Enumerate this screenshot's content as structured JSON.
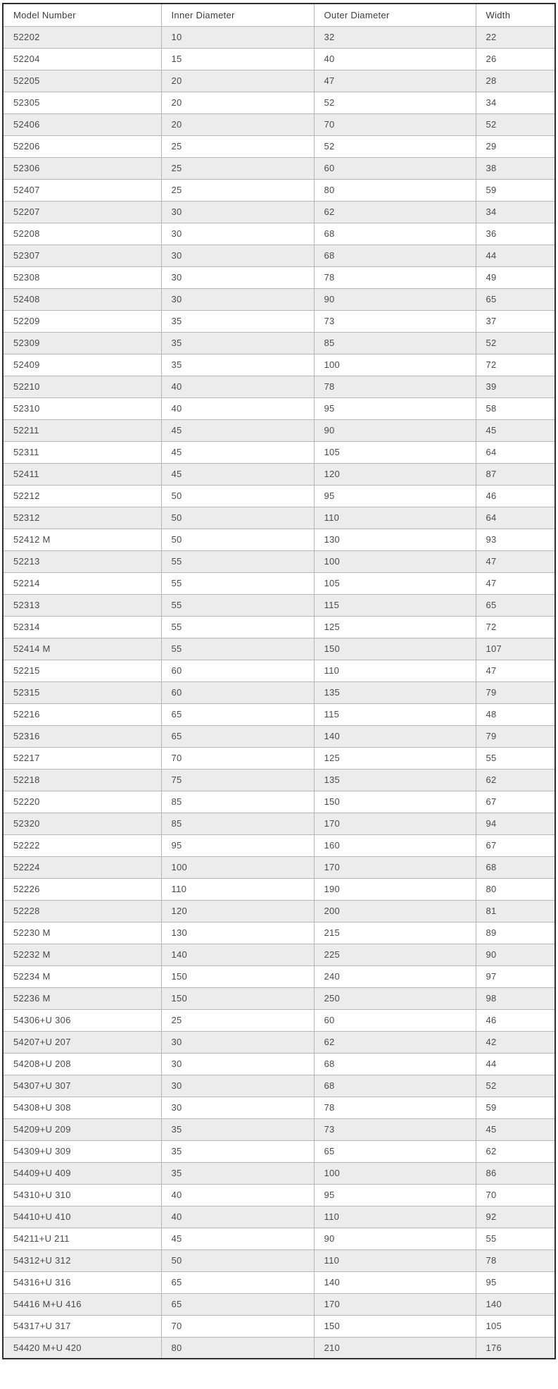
{
  "chart_data": {
    "type": "table",
    "columns": [
      "Model Number",
      "Inner Diameter",
      "Outer Diameter",
      "Width"
    ],
    "rows": [
      [
        "52202",
        "10",
        "32",
        "22"
      ],
      [
        "52204",
        "15",
        "40",
        "26"
      ],
      [
        "52205",
        "20",
        "47",
        "28"
      ],
      [
        "52305",
        "20",
        "52",
        "34"
      ],
      [
        "52406",
        "20",
        "70",
        "52"
      ],
      [
        "52206",
        "25",
        "52",
        "29"
      ],
      [
        "52306",
        "25",
        "60",
        "38"
      ],
      [
        "52407",
        "25",
        "80",
        "59"
      ],
      [
        "52207",
        "30",
        "62",
        "34"
      ],
      [
        "52208",
        "30",
        "68",
        "36"
      ],
      [
        "52307",
        "30",
        "68",
        "44"
      ],
      [
        "52308",
        "30",
        "78",
        "49"
      ],
      [
        "52408",
        "30",
        "90",
        "65"
      ],
      [
        "52209",
        "35",
        "73",
        "37"
      ],
      [
        "52309",
        "35",
        "85",
        "52"
      ],
      [
        "52409",
        "35",
        "100",
        "72"
      ],
      [
        "52210",
        "40",
        "78",
        "39"
      ],
      [
        "52310",
        "40",
        "95",
        "58"
      ],
      [
        "52211",
        "45",
        "90",
        "45"
      ],
      [
        "52311",
        "45",
        "105",
        "64"
      ],
      [
        "52411",
        "45",
        "120",
        "87"
      ],
      [
        "52212",
        "50",
        "95",
        "46"
      ],
      [
        "52312",
        "50",
        "110",
        "64"
      ],
      [
        "52412 M",
        "50",
        "130",
        "93"
      ],
      [
        "52213",
        "55",
        "100",
        "47"
      ],
      [
        "52214",
        "55",
        "105",
        "47"
      ],
      [
        "52313",
        "55",
        "115",
        "65"
      ],
      [
        "52314",
        "55",
        "125",
        "72"
      ],
      [
        "52414 M",
        "55",
        "150",
        "107"
      ],
      [
        "52215",
        "60",
        "110",
        "47"
      ],
      [
        "52315",
        "60",
        "135",
        "79"
      ],
      [
        "52216",
        "65",
        "115",
        "48"
      ],
      [
        "52316",
        "65",
        "140",
        "79"
      ],
      [
        "52217",
        "70",
        "125",
        "55"
      ],
      [
        "52218",
        "75",
        "135",
        "62"
      ],
      [
        "52220",
        "85",
        "150",
        "67"
      ],
      [
        "52320",
        "85",
        "170",
        "94"
      ],
      [
        "52222",
        "95",
        "160",
        "67"
      ],
      [
        "52224",
        "100",
        "170",
        "68"
      ],
      [
        "52226",
        "110",
        "190",
        "80"
      ],
      [
        "52228",
        "120",
        "200",
        "81"
      ],
      [
        "52230 M",
        "130",
        "215",
        "89"
      ],
      [
        "52232 M",
        "140",
        "225",
        "90"
      ],
      [
        "52234 M",
        "150",
        "240",
        "97"
      ],
      [
        "52236 M",
        "150",
        "250",
        "98"
      ],
      [
        "54306+U 306",
        "25",
        "60",
        "46"
      ],
      [
        "54207+U 207",
        "30",
        "62",
        "42"
      ],
      [
        "54208+U 208",
        "30",
        "68",
        "44"
      ],
      [
        "54307+U 307",
        "30",
        "68",
        "52"
      ],
      [
        "54308+U 308",
        "30",
        "78",
        "59"
      ],
      [
        "54209+U 209",
        "35",
        "73",
        "45"
      ],
      [
        "54309+U 309",
        "35",
        "65",
        "62"
      ],
      [
        "54409+U 409",
        "35",
        "100",
        "86"
      ],
      [
        "54310+U 310",
        "40",
        "95",
        "70"
      ],
      [
        "54410+U 410",
        "40",
        "110",
        "92"
      ],
      [
        "54211+U 211",
        "45",
        "90",
        "55"
      ],
      [
        "54312+U 312",
        "50",
        "110",
        "78"
      ],
      [
        "54316+U 316",
        "65",
        "140",
        "95"
      ],
      [
        "54416 M+U 416",
        "65",
        "170",
        "140"
      ],
      [
        "54317+U 317",
        "70",
        "150",
        "105"
      ],
      [
        "54420 M+U 420",
        "80",
        "210",
        "176"
      ]
    ],
    "colors": {
      "stripe_row_background": "#ececec",
      "plain_row_background": "#ffffff",
      "inner_border": "#b5b5b5",
      "outer_border": "#2e2e2e",
      "text": "#4a4a4a"
    }
  }
}
